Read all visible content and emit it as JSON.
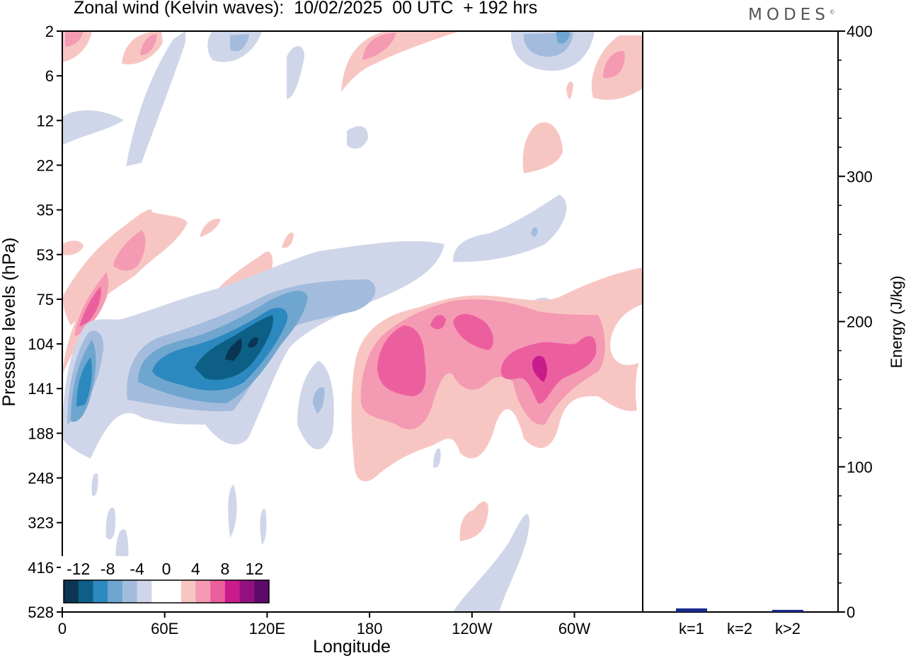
{
  "chart_data": [
    {
      "type": "heatmap",
      "title": "Zonal wind (Kelvin waves):  10/02/2025  00 UTC  + 192 hrs",
      "xlabel": "Longitude",
      "ylabel": "Pressure levels (hPa)",
      "x_ticks": [
        "0",
        "60E",
        "120E",
        "180",
        "120W",
        "60W"
      ],
      "x_tick_values": [
        0,
        60,
        120,
        180,
        240,
        300
      ],
      "x_range": [
        0,
        340
      ],
      "y_ticks": [
        "2",
        "6",
        "12",
        "22",
        "35",
        "53",
        "75",
        "104",
        "141",
        "188",
        "248",
        "323",
        "416",
        "528"
      ],
      "colorbar": {
        "labels": [
          "-12",
          "-8",
          "-4",
          "0",
          "4",
          "8",
          "12"
        ],
        "colors": [
          "#0b3552",
          "#0d5f86",
          "#2c89bf",
          "#6fa6cf",
          "#a3bcdd",
          "#d0d6e9",
          "#ffffff",
          "#ffffff",
          "#f7c6c3",
          "#f59ab3",
          "#ec5f9f",
          "#c81b8c",
          "#93117e",
          "#5d0a6a"
        ]
      },
      "features": [
        {
          "name": "easterly-maximum",
          "lon_range": [
            40,
            145
          ],
          "levels_hPa": [
            60,
            190
          ],
          "min_value": -12
        },
        {
          "name": "westerly-maximum",
          "lon_range": [
            185,
            320
          ],
          "levels_hPa": [
            80,
            250
          ],
          "max_value": 12
        }
      ]
    },
    {
      "type": "bar",
      "categories": [
        "k=1",
        "k=2",
        "k>2"
      ],
      "values": [
        2,
        0,
        1
      ],
      "ylabel": "Energy (J/kg)",
      "ylim": [
        0,
        400
      ],
      "y_ticks": [
        "0",
        "100",
        "200",
        "300",
        "400"
      ],
      "colors": [
        "#1a2a8c",
        "#1a2a8c",
        "#1a2a8c"
      ]
    }
  ],
  "brand": "MODES"
}
